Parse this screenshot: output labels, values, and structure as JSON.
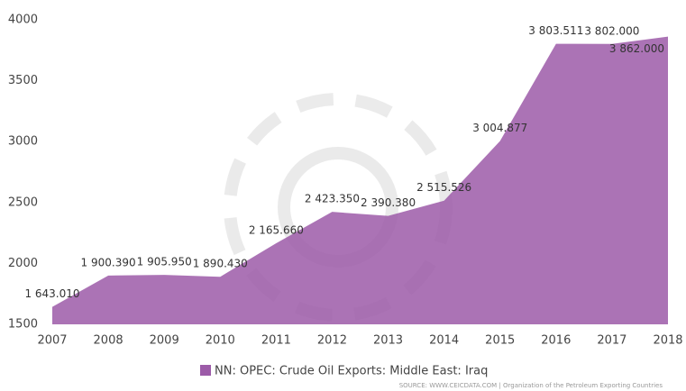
{
  "chart_data": {
    "type": "area",
    "categories": [
      "2007",
      "2008",
      "2009",
      "2010",
      "2011",
      "2012",
      "2013",
      "2014",
      "2015",
      "2016",
      "2017",
      "2018"
    ],
    "series": [
      {
        "name": "NN: OPEC: Crude Oil Exports: Middle East: Iraq",
        "color": "#9c5ba8",
        "values": [
          1643.01,
          1900.39,
          1905.95,
          1890.43,
          2165.66,
          2423.35,
          2390.38,
          2515.526,
          3004.877,
          3803.511,
          3802.0,
          3862.0
        ],
        "value_labels": [
          "1 643.010",
          "1 900.390",
          "1 905.950",
          "1 890.430",
          "2 165.660",
          "2 423.350",
          "2 390.380",
          "2 515.526",
          "3 004.877",
          "3 803.511",
          "3 802.000",
          "3 862.000"
        ]
      }
    ],
    "ylim": [
      1500,
      4000
    ],
    "yticks": [
      1500,
      2000,
      2500,
      3000,
      3500,
      4000
    ],
    "grid": false,
    "legend": "bottom",
    "source": "SOURCE: WWW.CEICDATA.COM | Organization of the Petroleum Exporting Countries"
  }
}
